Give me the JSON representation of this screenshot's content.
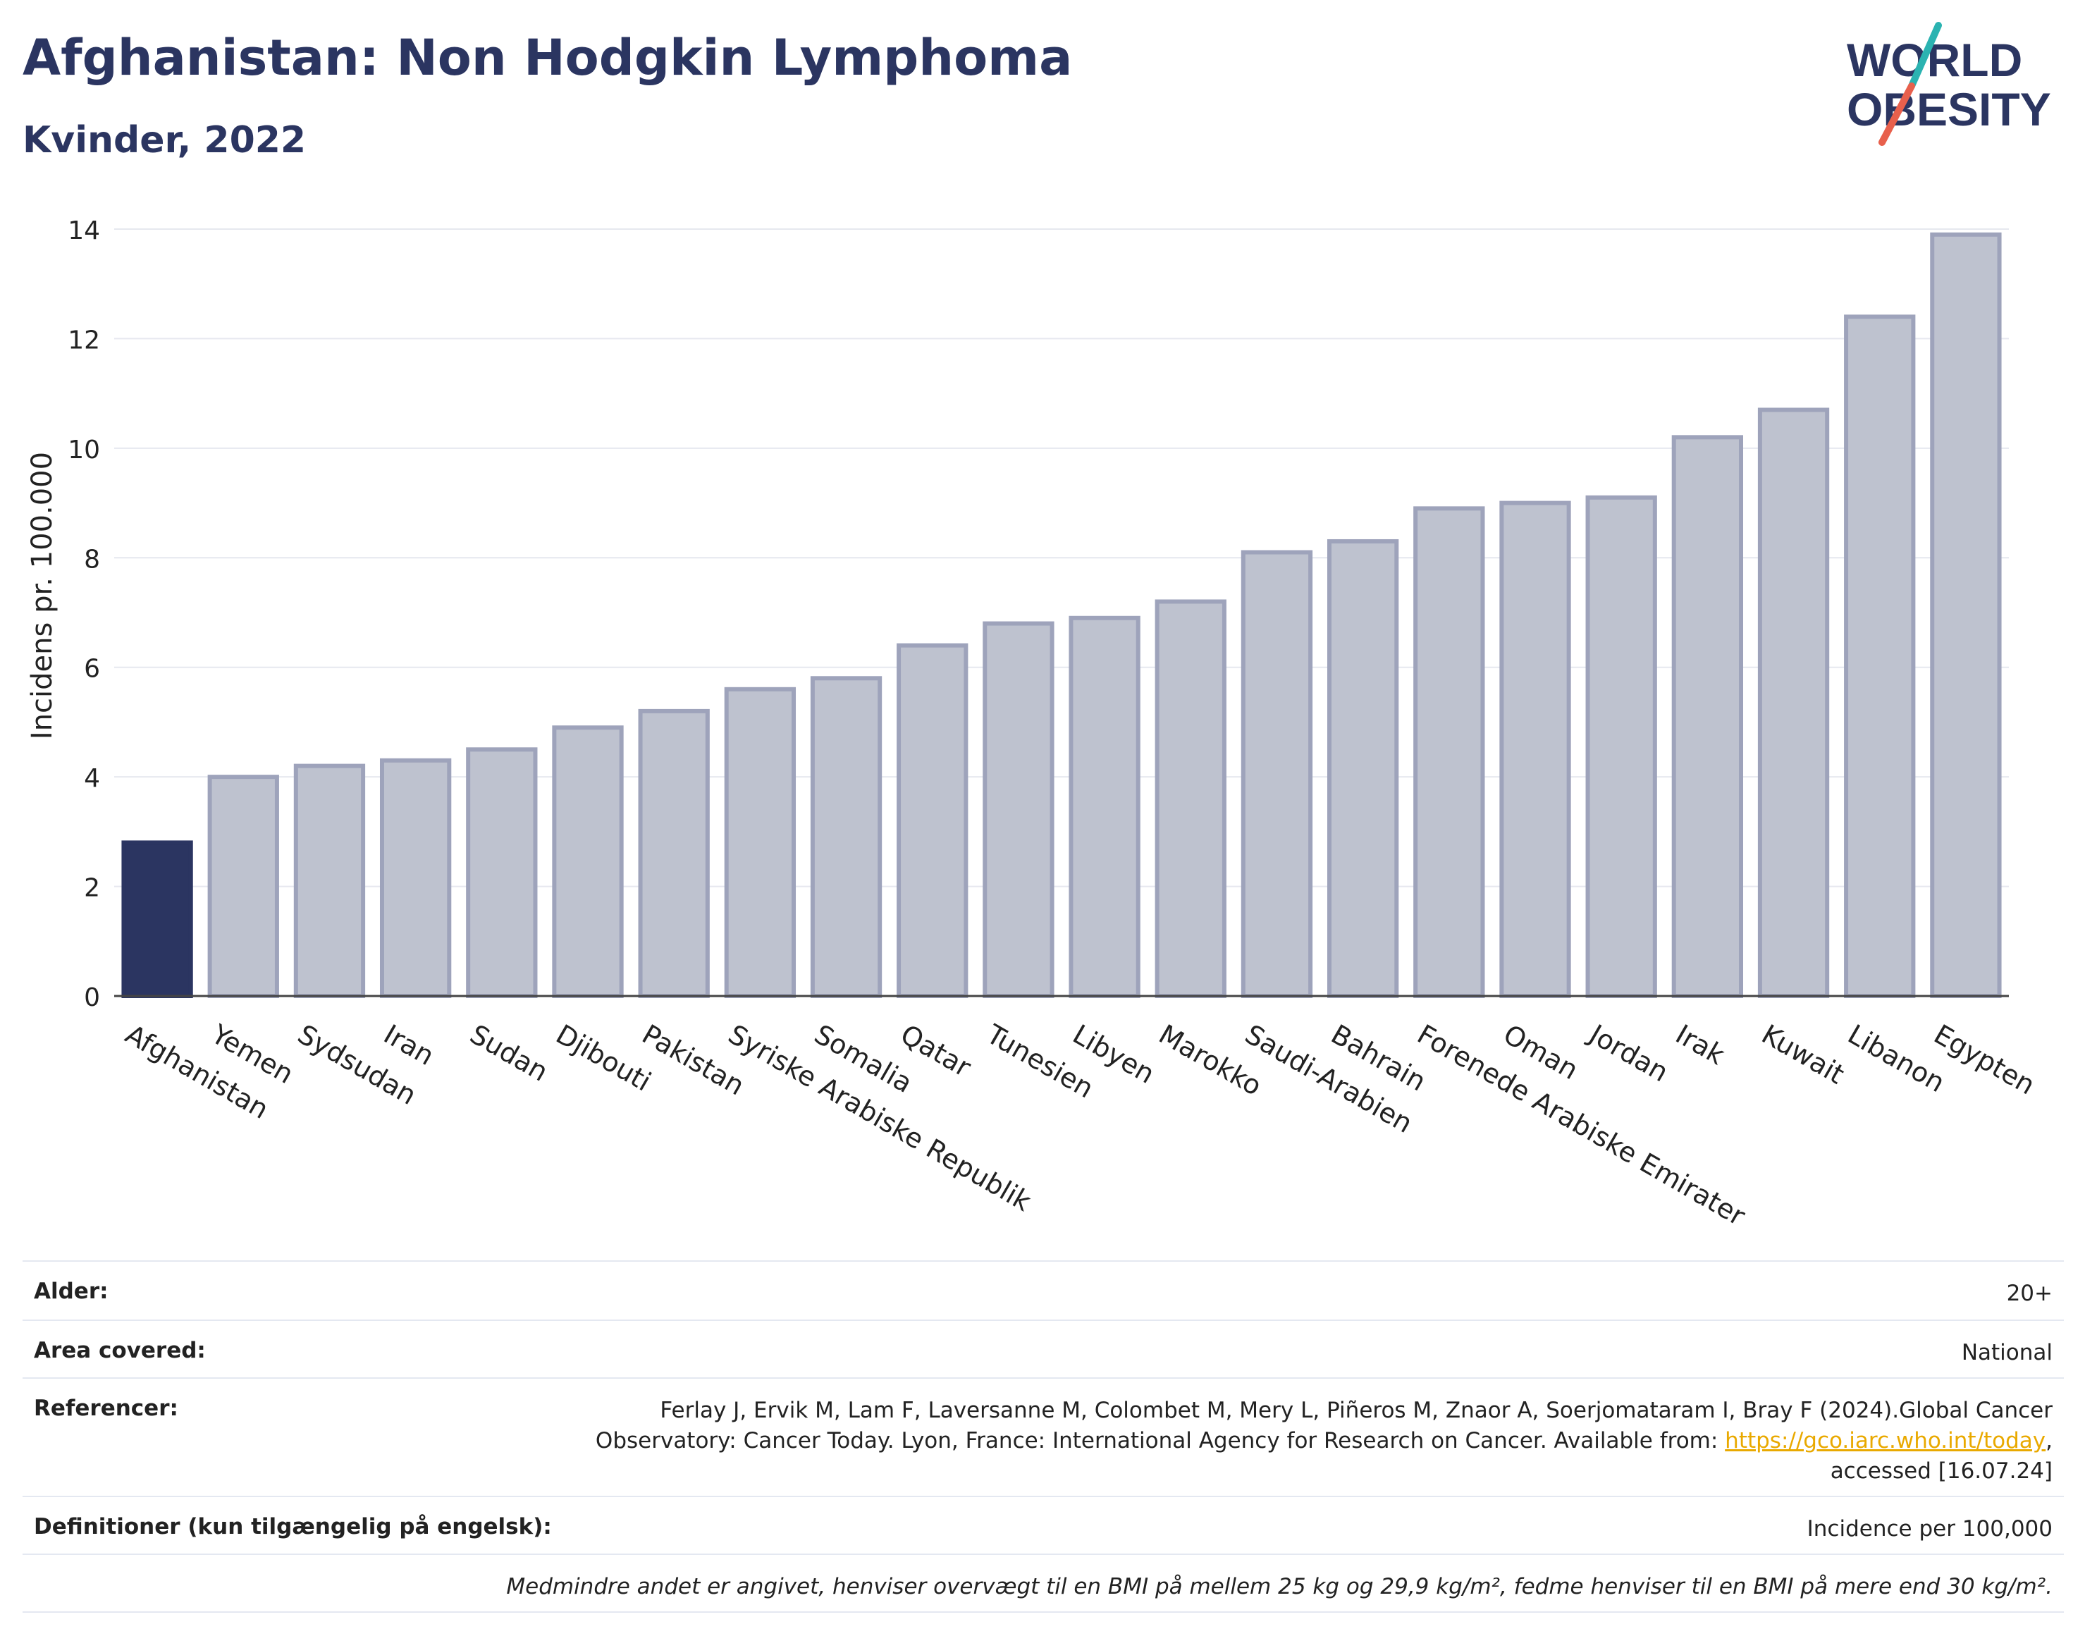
{
  "header": {
    "title": "Afghanistan: Non Hodgkin Lymphoma",
    "subtitle": "Kvinder, 2022"
  },
  "logo": {
    "line1": "WORLD",
    "line2": "OBESITY",
    "colors": {
      "text": "#2b3561",
      "slash_top": "#2bb3b1",
      "slash_bottom": "#e8604c"
    }
  },
  "chart_data": {
    "type": "bar",
    "categories": [
      "Afghanistan",
      "Yemen",
      "Sydsudan",
      "Iran",
      "Sudan",
      "Djibouti",
      "Pakistan",
      "Syriske Arabiske Republik",
      "Somalia",
      "Qatar",
      "Tunesien",
      "Libyen",
      "Marokko",
      "Saudi-Arabien",
      "Bahrain",
      "Forenede Arabiske Emirater",
      "Oman",
      "Jordan",
      "Irak",
      "Kuwait",
      "Libanon",
      "Egypten"
    ],
    "values": [
      2.8,
      4.0,
      4.2,
      4.3,
      4.5,
      4.9,
      5.2,
      5.6,
      5.8,
      6.4,
      6.8,
      6.9,
      7.2,
      8.1,
      8.3,
      8.9,
      9.0,
      9.1,
      10.2,
      10.7,
      12.4,
      13.9
    ],
    "highlight": "Afghanistan",
    "ylabel": "Incidens pr. 100.000",
    "ylim": [
      0,
      14
    ],
    "yticks": [
      0,
      2,
      4,
      6,
      8,
      10,
      12,
      14
    ],
    "grid": true,
    "colors": {
      "highlight": "#2b3561",
      "bar": "#bec2cf",
      "bar_outline": "#9ea3bb"
    }
  },
  "info": {
    "age": {
      "label": "Alder:",
      "value": "20+"
    },
    "area": {
      "label": "Area covered:",
      "value": "National"
    },
    "references": {
      "label": "Referencer:",
      "line1": "Ferlay J, Ervik M, Lam F, Laversanne M, Colombet M, Mery L, Piñeros M, Znaor A, Soerjomataram I, Bray F (2024).Global Cancer",
      "line2_pre": "Observatory: Cancer Today. Lyon, France: International Agency for Research on Cancer. Available from: ",
      "link": "https://gco.iarc.who.int/today",
      "line2_post": ",",
      "line3": "accessed [16.07.24]"
    },
    "definitions": {
      "label": "Definitioner (kun tilgængelig på engelsk):",
      "value": "Incidence per 100,000"
    },
    "note": "Medmindre andet er angivet, henviser overvægt til en BMI på mellem 25 kg og 29,9 kg/m², fedme henviser til en BMI på mere end 30 kg/m²."
  }
}
